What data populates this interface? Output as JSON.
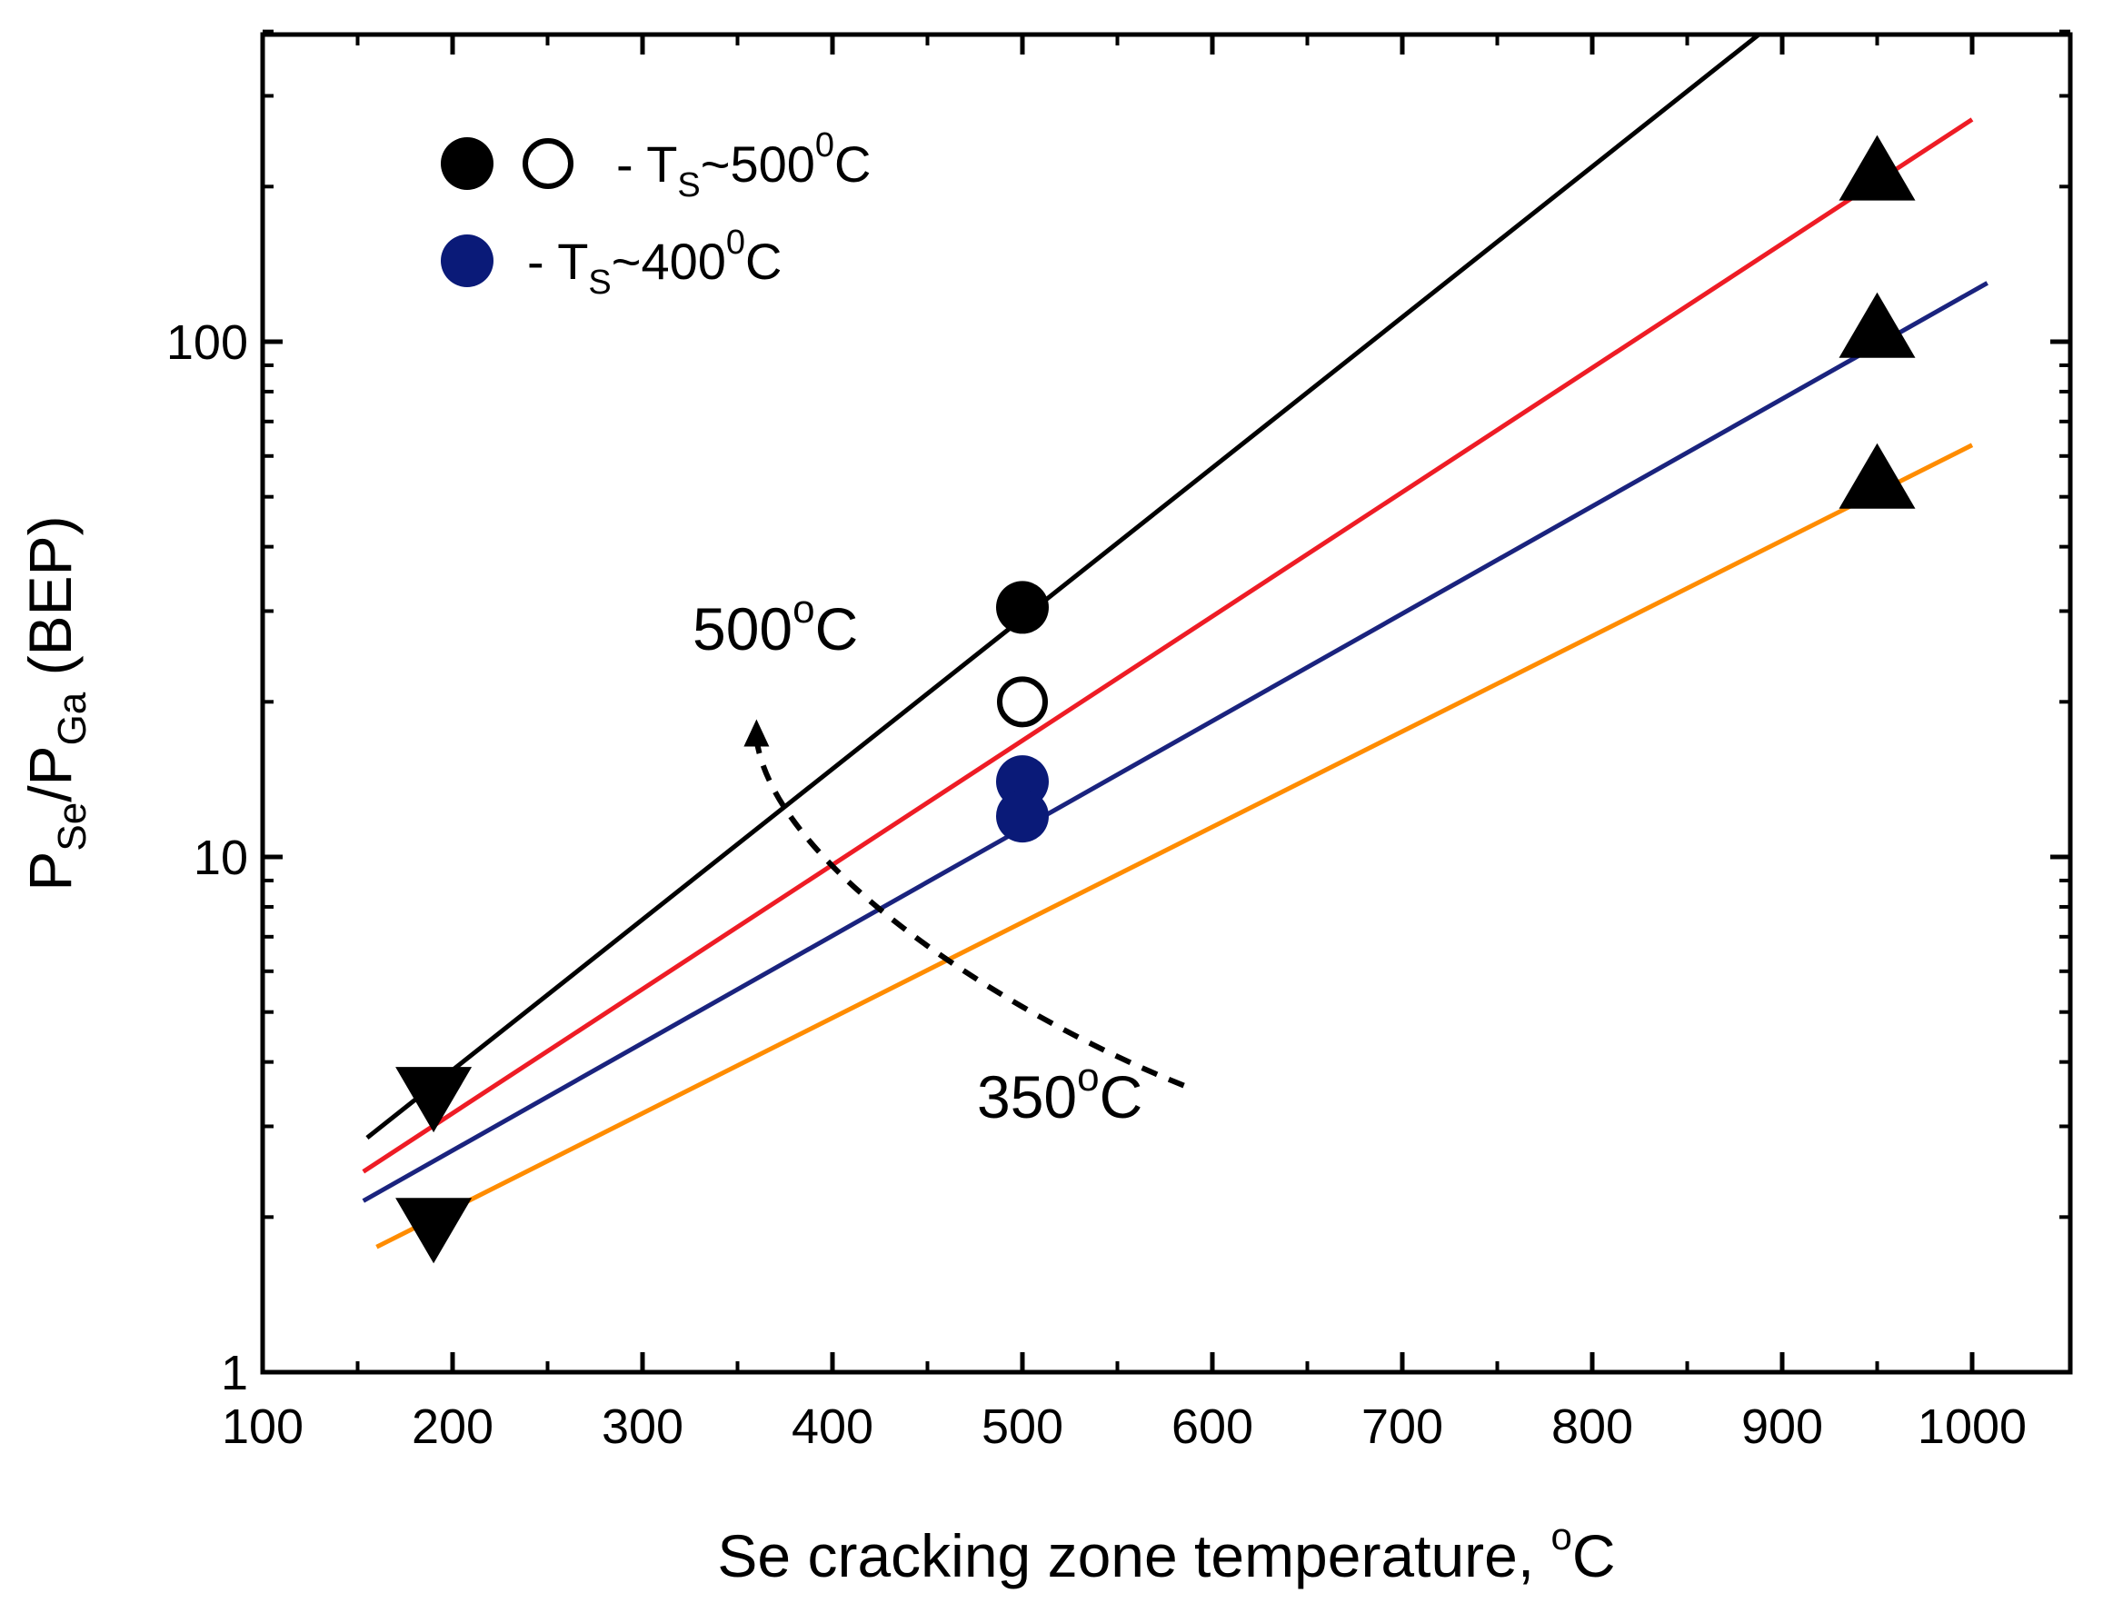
{
  "chart_data": {
    "type": "scatter",
    "title": "",
    "xlabel": {
      "main": "Se cracking zone temperature,",
      "sup": "o",
      "tail": "C"
    },
    "ylabel": {
      "p1": "P",
      "s1": "Se",
      "mid": "/P",
      "s2": "Ga",
      "tail": " (BEP)"
    },
    "x_scale": "linear",
    "y_scale": "log",
    "xlim": [
      100,
      1050
    ],
    "ylim": [
      1,
      600
    ],
    "x_ticks": [
      100,
      200,
      300,
      400,
      500,
      600,
      700,
      800,
      900,
      1000
    ],
    "x_tick_labels": [
      "100",
      "200",
      "300",
      "400",
      "500",
      "600",
      "700",
      "800",
      "900",
      "1000"
    ],
    "y_ticks": [
      1,
      10,
      100
    ],
    "y_tick_labels": [
      "1",
      "10",
      "100"
    ],
    "grid": false,
    "legend_position": "top-left",
    "legend": [
      {
        "markers": [
          "filled-circle-black",
          "open-circle-black"
        ],
        "prefix": "- T",
        "sub": "S",
        "mid": "~500",
        "sup": "0",
        "tail": "C"
      },
      {
        "markers": [
          "filled-circle-navy"
        ],
        "prefix": "- T",
        "sub": "S",
        "mid": "~400",
        "sup": "0",
        "tail": "C"
      }
    ],
    "fit_lines": [
      {
        "color": "#000000",
        "x": [
          155,
          950
        ],
        "y": [
          2.85,
          600
        ]
      },
      {
        "color": "#ee1c25",
        "x": [
          153,
          1000
        ],
        "y": [
          2.45,
          270
        ]
      },
      {
        "color": "#1a237e",
        "x": [
          153,
          1008
        ],
        "y": [
          2.15,
          130
        ]
      },
      {
        "color": "#ff8c00",
        "x": [
          160,
          1000
        ],
        "y": [
          1.75,
          63
        ]
      }
    ],
    "series": [
      {
        "marker": "triangle-down",
        "fill": "#000000",
        "x": [
          190,
          190
        ],
        "y": [
          3.5,
          1.95
        ]
      },
      {
        "marker": "triangle-up",
        "fill": "#000000",
        "x": [
          950,
          950,
          950
        ],
        "y": [
          210,
          104,
          53
        ]
      },
      {
        "marker": "circle",
        "fill": "#000000",
        "x": [
          500
        ],
        "y": [
          30.5
        ]
      },
      {
        "marker": "circle-open",
        "fill": "#ffffff",
        "x": [
          500
        ],
        "y": [
          20
        ]
      },
      {
        "marker": "circle",
        "fill": "#0a1a78",
        "x": [
          500,
          500
        ],
        "y": [
          14,
          12
        ]
      }
    ],
    "annotations": [
      {
        "main": "500",
        "sup": "o",
        "tail": "C",
        "x": 420,
        "y": 28
      },
      {
        "main": "350",
        "sup": "o",
        "tail": "C",
        "x": 585,
        "y": 3.6
      }
    ],
    "curved_arrow": {
      "color": "#000000",
      "dashed": true,
      "from": {
        "x": 585,
        "y": 3.6
      },
      "to": {
        "x": 360,
        "y": 18.5
      }
    }
  }
}
